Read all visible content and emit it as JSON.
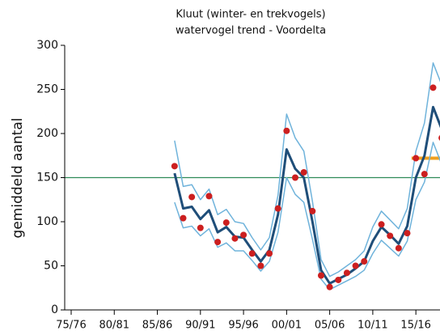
{
  "chart_data": {
    "type": "line",
    "title": "Kluut (winter- en trekvogels)",
    "subtitle": "watervogel trend - Voordelta",
    "y_label": "gemiddeld aantal",
    "x": [
      1987,
      1988,
      1989,
      1990,
      1991,
      1992,
      1993,
      1994,
      1995,
      1996,
      1997,
      1998,
      1999,
      2000,
      2001,
      2002,
      2003,
      2004,
      2005,
      2006,
      2007,
      2008,
      2009,
      2010,
      2011,
      2012,
      2013,
      2014,
      2015,
      2016,
      2017,
      2018
    ],
    "series": [
      {
        "color": "#6fb3db",
        "width": 1.5,
        "values": [
          192,
          140,
          142,
          125,
          137,
          108,
          114,
          100,
          98,
          82,
          68,
          82,
          130,
          222,
          195,
          180,
          123,
          57,
          38,
          43,
          50,
          57,
          67,
          94,
          112,
          102,
          92,
          115,
          180,
          212,
          280,
          255
        ]
      },
      {
        "color": "#6fb3db",
        "width": 1.5,
        "values": [
          122,
          93,
          95,
          84,
          92,
          71,
          76,
          67,
          67,
          56,
          44,
          55,
          88,
          150,
          131,
          122,
          80,
          35,
          23,
          28,
          33,
          38,
          45,
          64,
          79,
          70,
          61,
          78,
          125,
          145,
          190,
          165
        ]
      },
      {
        "color": "#1f4e79",
        "width": 3,
        "values": [
          155,
          115,
          117,
          103,
          113,
          88,
          94,
          83,
          82,
          68,
          55,
          68,
          108,
          182,
          160,
          150,
          100,
          45,
          30,
          35,
          40,
          47,
          55,
          78,
          94,
          85,
          75,
          95,
          150,
          175,
          230,
          205
        ]
      },
      {
        "color": "#cc1f1f",
        "marker": "dot",
        "values": [
          163,
          104,
          128,
          93,
          129,
          77,
          99,
          81,
          85,
          64,
          50,
          64,
          115,
          203,
          150,
          156,
          112,
          39,
          26,
          34,
          42,
          50,
          55,
          null,
          97,
          84,
          70,
          87,
          172,
          154,
          252,
          195
        ]
      }
    ],
    "reference_lines": [
      {
        "value": 150,
        "color": "#2e8b57",
        "x_from": 1974.25,
        "x_to": 2017.8,
        "width": 1.2
      },
      {
        "value": 172,
        "color": "#f0a020",
        "x_from": 2014.5,
        "x_to": 2017.8,
        "width": 4
      }
    ],
    "xlim": [
      1974.25,
      2017.8
    ],
    "xticks": [
      {
        "value": 1975,
        "label": "75/76"
      },
      {
        "value": 1980,
        "label": "80/81"
      },
      {
        "value": 1985,
        "label": "85/86"
      },
      {
        "value": 1990,
        "label": "90/91"
      },
      {
        "value": 1995,
        "label": "95/96"
      },
      {
        "value": 2000,
        "label": "00/01"
      },
      {
        "value": 2005,
        "label": "05/06"
      },
      {
        "value": 2010,
        "label": "10/11"
      },
      {
        "value": 2015,
        "label": "15/16"
      }
    ],
    "ylim": [
      0,
      300
    ],
    "yticks": [
      0,
      50,
      100,
      150,
      200,
      250,
      300
    ]
  }
}
